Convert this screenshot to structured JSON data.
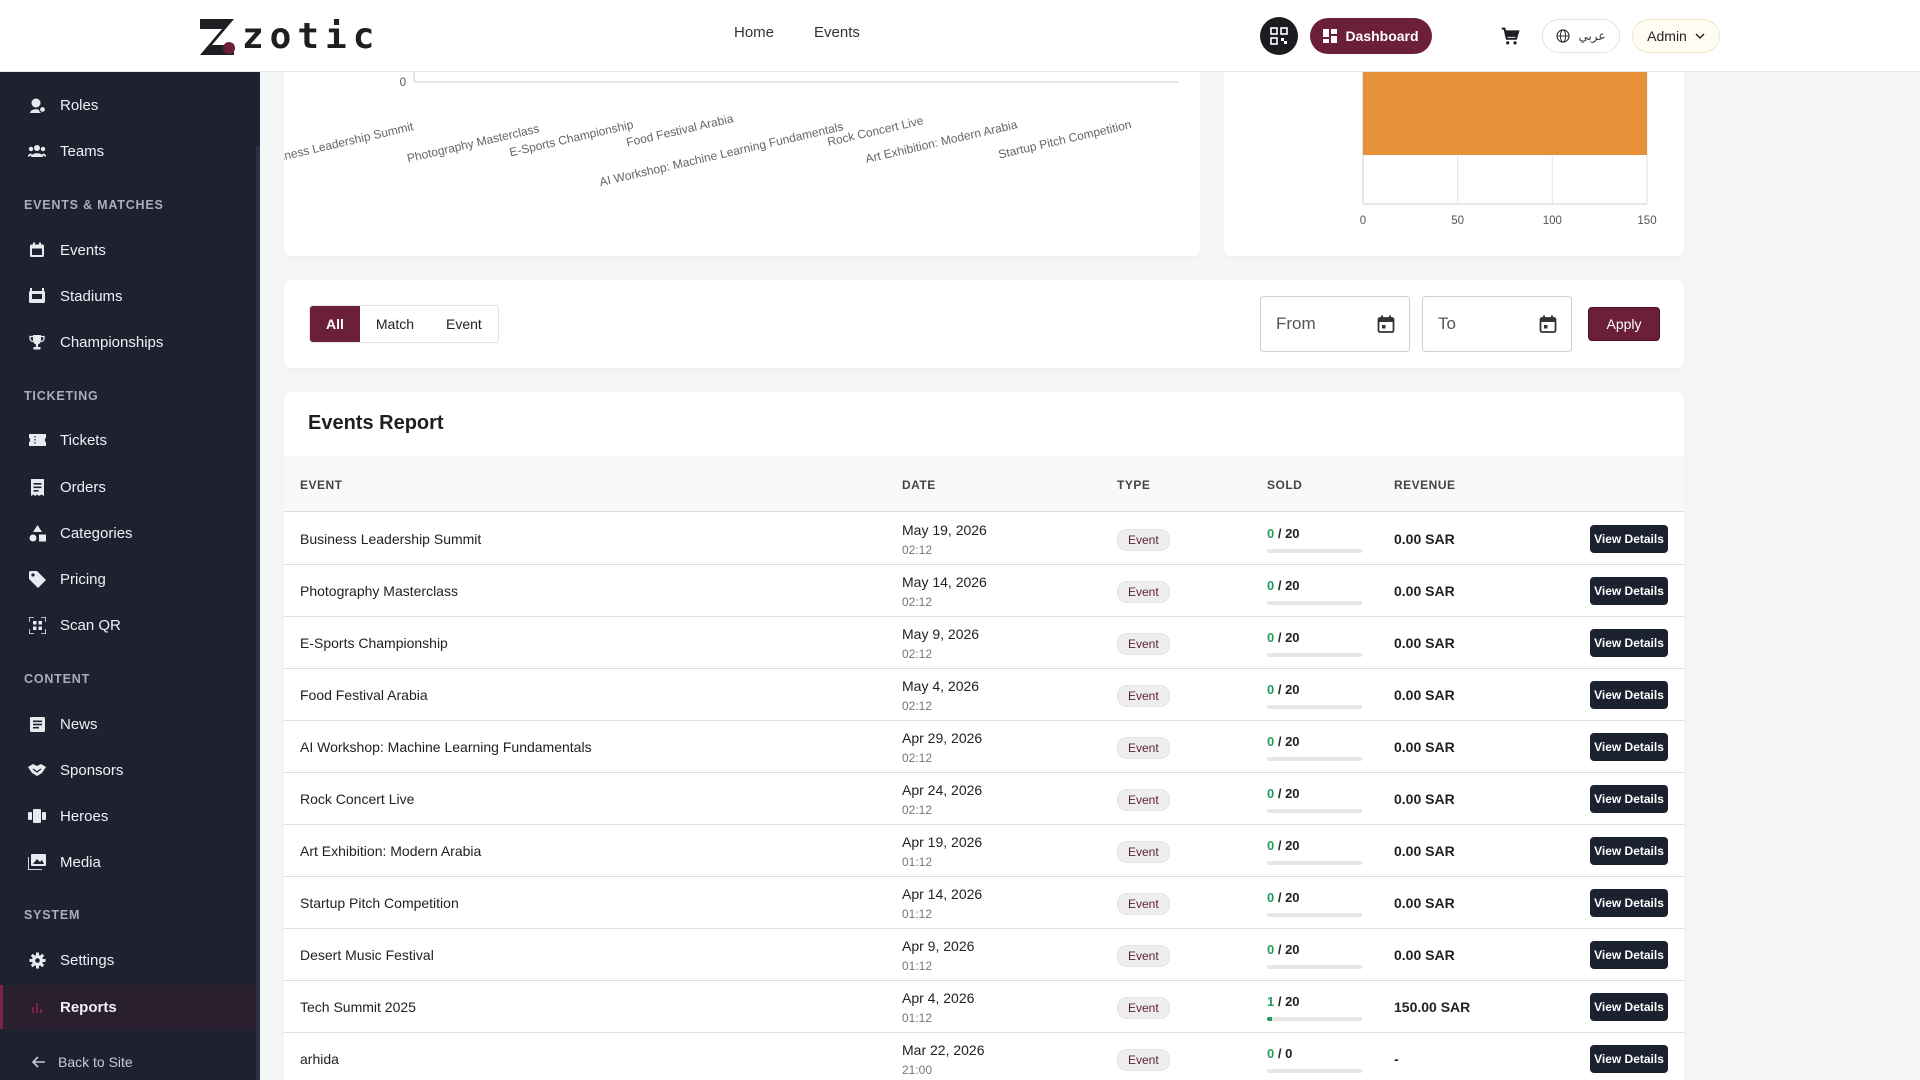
{
  "brand": {
    "logo_text": "zotic"
  },
  "topbar": {
    "nav": [
      {
        "label": "Home"
      },
      {
        "label": "Events"
      }
    ],
    "dashboard_label": "Dashboard",
    "language_label": "عربي",
    "user_label": "Admin"
  },
  "sidebar": {
    "items": [
      {
        "label": "Roles",
        "icon": "user-gear-icon"
      },
      {
        "label": "Teams",
        "icon": "group-icon"
      }
    ],
    "sections": [
      {
        "title": "EVENTS & MATCHES",
        "items": [
          {
            "label": "Events",
            "icon": "calendar-icon"
          },
          {
            "label": "Stadiums",
            "icon": "stadium-icon"
          },
          {
            "label": "Championships",
            "icon": "trophy-icon"
          }
        ]
      },
      {
        "title": "TICKETING",
        "items": [
          {
            "label": "Tickets",
            "icon": "ticket-icon"
          },
          {
            "label": "Orders",
            "icon": "receipt-icon"
          },
          {
            "label": "Categories",
            "icon": "category-icon"
          },
          {
            "label": "Pricing",
            "icon": "tag-icon"
          },
          {
            "label": "Scan QR",
            "icon": "qr-scan-icon"
          }
        ]
      },
      {
        "title": "CONTENT",
        "items": [
          {
            "label": "News",
            "icon": "news-icon"
          },
          {
            "label": "Sponsors",
            "icon": "handshake-icon"
          },
          {
            "label": "Heroes",
            "icon": "heroes-icon"
          },
          {
            "label": "Media",
            "icon": "image-icon"
          }
        ]
      },
      {
        "title": "SYSTEM",
        "items": [
          {
            "label": "Settings",
            "icon": "gear-icon"
          },
          {
            "label": "Reports",
            "icon": "bar-chart-icon",
            "active": true
          }
        ]
      }
    ],
    "back_label": "Back to Site"
  },
  "chart_data": [
    {
      "type": "line",
      "categories": [
        "Business Leadership Summit",
        "Photography Masterclass",
        "E-Sports Championship",
        "Food Festival Arabia",
        "AI Workshop: Machine Learning Fundamentals",
        "Rock Concert Live",
        "Art Exhibition: Modern Arabia",
        "Startup Pitch Competition"
      ],
      "visible_ytick": "0"
    },
    {
      "type": "bar",
      "orientation": "horizontal",
      "xticks": [
        "0",
        "50",
        "100",
        "150"
      ],
      "xlim": [
        0,
        150
      ],
      "values": [
        150
      ],
      "color": "#e69138"
    }
  ],
  "filters": {
    "tabs": [
      {
        "label": "All",
        "active": true
      },
      {
        "label": "Match"
      },
      {
        "label": "Event"
      }
    ],
    "from_placeholder": "From",
    "to_placeholder": "To",
    "apply_label": "Apply"
  },
  "report": {
    "title": "Events Report",
    "columns": {
      "event": "EVENT",
      "date": "DATE",
      "type": "TYPE",
      "sold": "SOLD",
      "revenue": "REVENUE"
    },
    "view_label": "View Details",
    "rows": [
      {
        "event": "Business Leadership Summit",
        "date": "May 19, 2026",
        "time": "02:12",
        "type": "Event",
        "sold": "0",
        "capacity": "20",
        "progress": 0,
        "revenue": "0.00 SAR"
      },
      {
        "event": "Photography Masterclass",
        "date": "May 14, 2026",
        "time": "02:12",
        "type": "Event",
        "sold": "0",
        "capacity": "20",
        "progress": 0,
        "revenue": "0.00 SAR"
      },
      {
        "event": "E-Sports Championship",
        "date": "May 9, 2026",
        "time": "02:12",
        "type": "Event",
        "sold": "0",
        "capacity": "20",
        "progress": 0,
        "revenue": "0.00 SAR"
      },
      {
        "event": "Food Festival Arabia",
        "date": "May 4, 2026",
        "time": "02:12",
        "type": "Event",
        "sold": "0",
        "capacity": "20",
        "progress": 0,
        "revenue": "0.00 SAR"
      },
      {
        "event": "AI Workshop: Machine Learning Fundamentals",
        "date": "Apr 29, 2026",
        "time": "02:12",
        "type": "Event",
        "sold": "0",
        "capacity": "20",
        "progress": 0,
        "revenue": "0.00 SAR"
      },
      {
        "event": "Rock Concert Live",
        "date": "Apr 24, 2026",
        "time": "02:12",
        "type": "Event",
        "sold": "0",
        "capacity": "20",
        "progress": 0,
        "revenue": "0.00 SAR"
      },
      {
        "event": "Art Exhibition: Modern Arabia",
        "date": "Apr 19, 2026",
        "time": "01:12",
        "type": "Event",
        "sold": "0",
        "capacity": "20",
        "progress": 0,
        "revenue": "0.00 SAR"
      },
      {
        "event": "Startup Pitch Competition",
        "date": "Apr 14, 2026",
        "time": "01:12",
        "type": "Event",
        "sold": "0",
        "capacity": "20",
        "progress": 0,
        "revenue": "0.00 SAR"
      },
      {
        "event": "Desert Music Festival",
        "date": "Apr 9, 2026",
        "time": "01:12",
        "type": "Event",
        "sold": "0",
        "capacity": "20",
        "progress": 0,
        "revenue": "0.00 SAR"
      },
      {
        "event": "Tech Summit 2025",
        "date": "Apr 4, 2026",
        "time": "01:12",
        "type": "Event",
        "sold": "1",
        "capacity": "20",
        "progress": 0.05,
        "revenue": "150.00 SAR"
      },
      {
        "event": "arhida",
        "date": "Mar 22, 2026",
        "time": "21:00",
        "type": "Event",
        "sold": "0",
        "capacity": "0",
        "progress": 0,
        "revenue": "-"
      }
    ]
  },
  "colors": {
    "brand": "#6b1f3a",
    "sidebar": "#1e2130",
    "bar": "#e69138",
    "sold_green": "#1f9d5a"
  }
}
